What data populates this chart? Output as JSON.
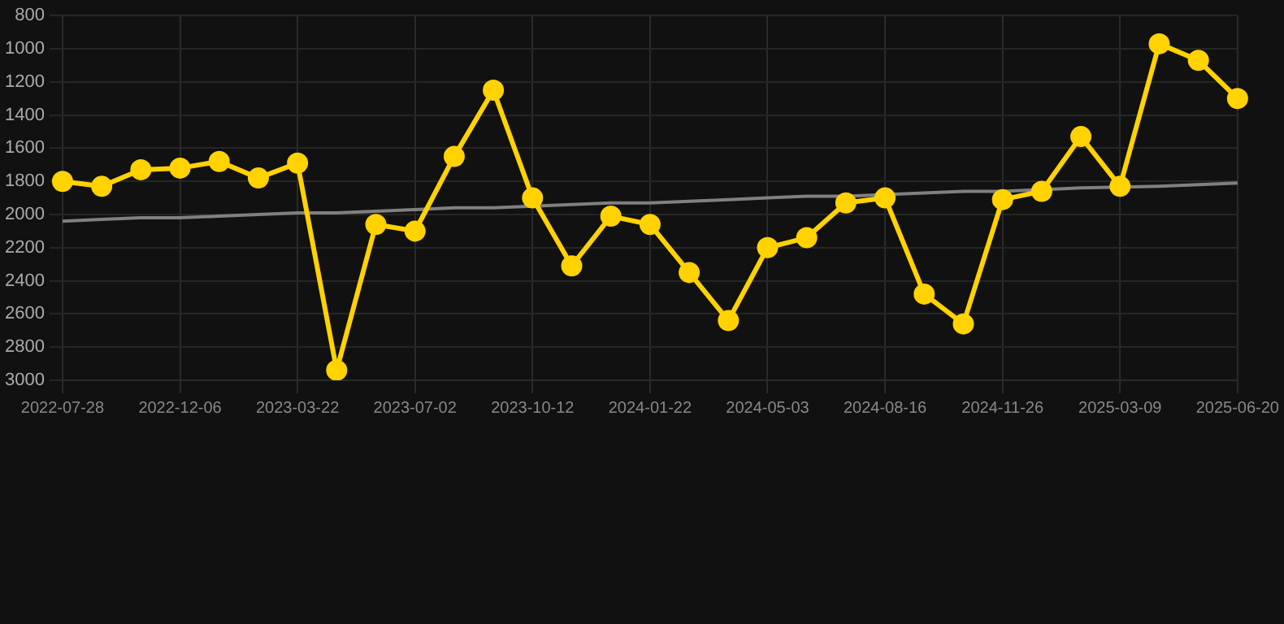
{
  "chart_data": {
    "type": "line",
    "categories": [
      "2022-07-28",
      null,
      null,
      "2022-12-06",
      null,
      null,
      "2023-03-22",
      null,
      null,
      "2023-07-02",
      null,
      null,
      "2023-10-12",
      null,
      null,
      "2024-01-22",
      null,
      null,
      "2024-05-03",
      null,
      null,
      "2024-08-16",
      null,
      null,
      "2024-11-26",
      null,
      null,
      "2025-03-09",
      null,
      null,
      "2025-06-20"
    ],
    "series": [
      {
        "color": "#ffd200",
        "marker": "circle",
        "values": [
          1800,
          1830,
          1730,
          1720,
          1680,
          1780,
          1690,
          2940,
          2060,
          2100,
          1650,
          1250,
          1900,
          2310,
          2010,
          2060,
          2350,
          2640,
          2200,
          2140,
          1930,
          1900,
          2480,
          2660,
          1910,
          1860,
          1530,
          1830,
          970,
          1070,
          1300
        ]
      },
      {
        "type": "line",
        "color": "#808080",
        "marker": "none",
        "values": [
          2040,
          2030,
          2020,
          2020,
          2010,
          2000,
          1990,
          1990,
          1980,
          1970,
          1960,
          1960,
          1950,
          1940,
          1930,
          1930,
          1920,
          1910,
          1900,
          1890,
          1890,
          null,
          1870,
          1860,
          1860,
          null,
          1840,
          null,
          1830,
          1820,
          1810
        ]
      }
    ],
    "ylim": [
      3000,
      800
    ],
    "yticks": [
      800,
      1000,
      1200,
      1400,
      1600,
      1800,
      2000,
      2200,
      2400,
      2600,
      2800,
      3000
    ],
    "grid": true,
    "legend": false
  }
}
